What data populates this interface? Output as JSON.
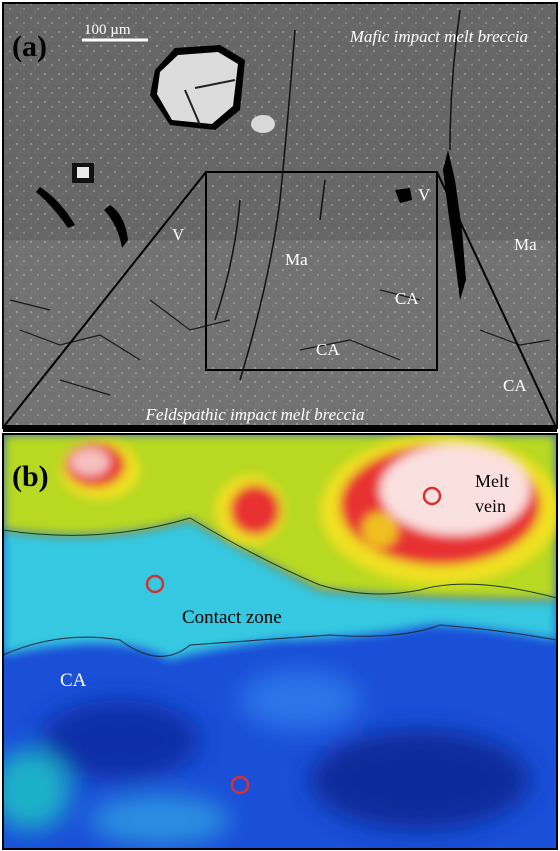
{
  "panel_a": {
    "label": "(a)",
    "scale_bar": "100 µm",
    "title_top": "Mafic impact melt breccia",
    "title_bottom": "Feldspathic impact melt breccia",
    "annotations": [
      "V",
      "V",
      "Ma",
      "Ma",
      "CA",
      "CA",
      "CA"
    ]
  },
  "panel_b": {
    "label": "(b)",
    "melt_vein": [
      "Melt",
      "vein"
    ],
    "contact_zone": "Contact zone",
    "ca": "CA"
  }
}
